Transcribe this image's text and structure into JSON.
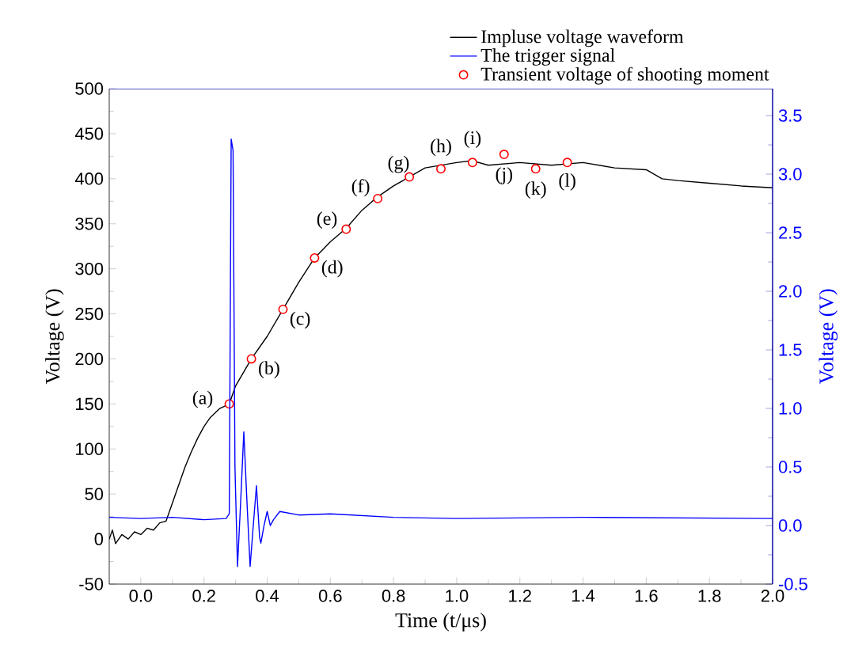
{
  "chart_data": {
    "type": "line",
    "xlabel": "Time (t/μs)",
    "ylabel": "Voltage (V)",
    "y2label": "Voltage (V)",
    "xlim": [
      -0.1,
      2.0
    ],
    "xticks": [
      {
        "value": 0.0,
        "label": "0.0"
      },
      0.2,
      0.4,
      0.6,
      0.8,
      {
        "value": 1.0,
        "label": "1.0"
      },
      1.2,
      1.4,
      1.6,
      1.8,
      {
        "value": 2.0,
        "label": "2.0"
      }
    ],
    "ylim": [
      -50,
      500
    ],
    "yticks": [
      -50,
      0,
      50,
      100,
      150,
      200,
      250,
      300,
      350,
      400,
      450,
      500
    ],
    "y2lim": [
      -0.5,
      3.73
    ],
    "y2ticks": [
      -0.5,
      {
        "value": 0.0,
        "label": "0.0"
      },
      0.5,
      {
        "value": 1.0,
        "label": "1.0"
      },
      1.5,
      {
        "value": 2.0,
        "label": "2.0"
      },
      2.5,
      {
        "value": 3.0,
        "label": "3.0"
      },
      3.5
    ],
    "legend": "top right",
    "grid": false,
    "series": [
      {
        "name": "Impluse voltage waveform",
        "color": "#000000",
        "marker": "none",
        "x": [
          -0.1,
          -0.09,
          -0.08,
          -0.06,
          -0.04,
          -0.02,
          0.0,
          0.02,
          0.04,
          0.06,
          0.08,
          0.1,
          0.12,
          0.14,
          0.16,
          0.18,
          0.2,
          0.22,
          0.25,
          0.28,
          0.3,
          0.35,
          0.4,
          0.45,
          0.5,
          0.55,
          0.6,
          0.65,
          0.7,
          0.75,
          0.8,
          0.85,
          0.9,
          0.95,
          1.0,
          1.05,
          1.1,
          1.2,
          1.3,
          1.4,
          1.5,
          1.6,
          1.65,
          1.7,
          1.8,
          1.9,
          2.0
        ],
        "values": [
          0,
          10,
          -5,
          5,
          0,
          8,
          5,
          12,
          10,
          18,
          20,
          40,
          60,
          80,
          97,
          112,
          125,
          135,
          145,
          150,
          170,
          200,
          225,
          255,
          285,
          312,
          330,
          345,
          365,
          380,
          392,
          402,
          412,
          415,
          418,
          420,
          415,
          418,
          415,
          418,
          412,
          410,
          400,
          398,
          395,
          392,
          390
        ]
      },
      {
        "name": "The trigger signal",
        "axis": "y2",
        "color": "#0000ff",
        "marker": "none",
        "x": [
          -0.1,
          0.0,
          0.1,
          0.2,
          0.27,
          0.28,
          0.286,
          0.292,
          0.298,
          0.306,
          0.316,
          0.326,
          0.336,
          0.346,
          0.356,
          0.366,
          0.376,
          0.38,
          0.39,
          0.4,
          0.41,
          0.42,
          0.44,
          0.5,
          0.6,
          0.8,
          1.0,
          1.4,
          2.0
        ],
        "values": [
          0.07,
          0.06,
          0.07,
          0.05,
          0.06,
          0.1,
          3.3,
          3.2,
          0.5,
          -0.35,
          0.2,
          0.8,
          0.2,
          -0.35,
          0.0,
          0.34,
          -0.1,
          -0.15,
          0.0,
          0.12,
          0.0,
          0.05,
          0.12,
          0.09,
          0.1,
          0.07,
          0.06,
          0.07,
          0.06
        ]
      },
      {
        "name": "Transient voltage of shooting moment",
        "type": "scatter",
        "color": "#ff0000",
        "marker": "circle",
        "x": [
          0.28,
          0.35,
          0.45,
          0.55,
          0.65,
          0.75,
          0.85,
          0.95,
          1.05,
          1.15,
          1.25,
          1.35
        ],
        "values": [
          150,
          200,
          255,
          312,
          344,
          378,
          402,
          411,
          418,
          427,
          411,
          418
        ]
      }
    ],
    "annotations": [
      {
        "text": "(a)",
        "x": 0.28,
        "y": 150
      },
      {
        "text": "(b)",
        "x": 0.35,
        "y": 200
      },
      {
        "text": "(c)",
        "x": 0.45,
        "y": 255
      },
      {
        "text": "(d)",
        "x": 0.55,
        "y": 312
      },
      {
        "text": "(e)",
        "x": 0.65,
        "y": 344
      },
      {
        "text": "(f)",
        "x": 0.75,
        "y": 378
      },
      {
        "text": "(g)",
        "x": 0.85,
        "y": 402
      },
      {
        "text": "(h)",
        "x": 0.95,
        "y": 411
      },
      {
        "text": "(i)",
        "x": 1.05,
        "y": 418
      },
      {
        "text": "(j)",
        "x": 1.15,
        "y": 427
      },
      {
        "text": "(k)",
        "x": 1.25,
        "y": 411
      },
      {
        "text": "(l)",
        "x": 1.35,
        "y": 418
      }
    ]
  }
}
